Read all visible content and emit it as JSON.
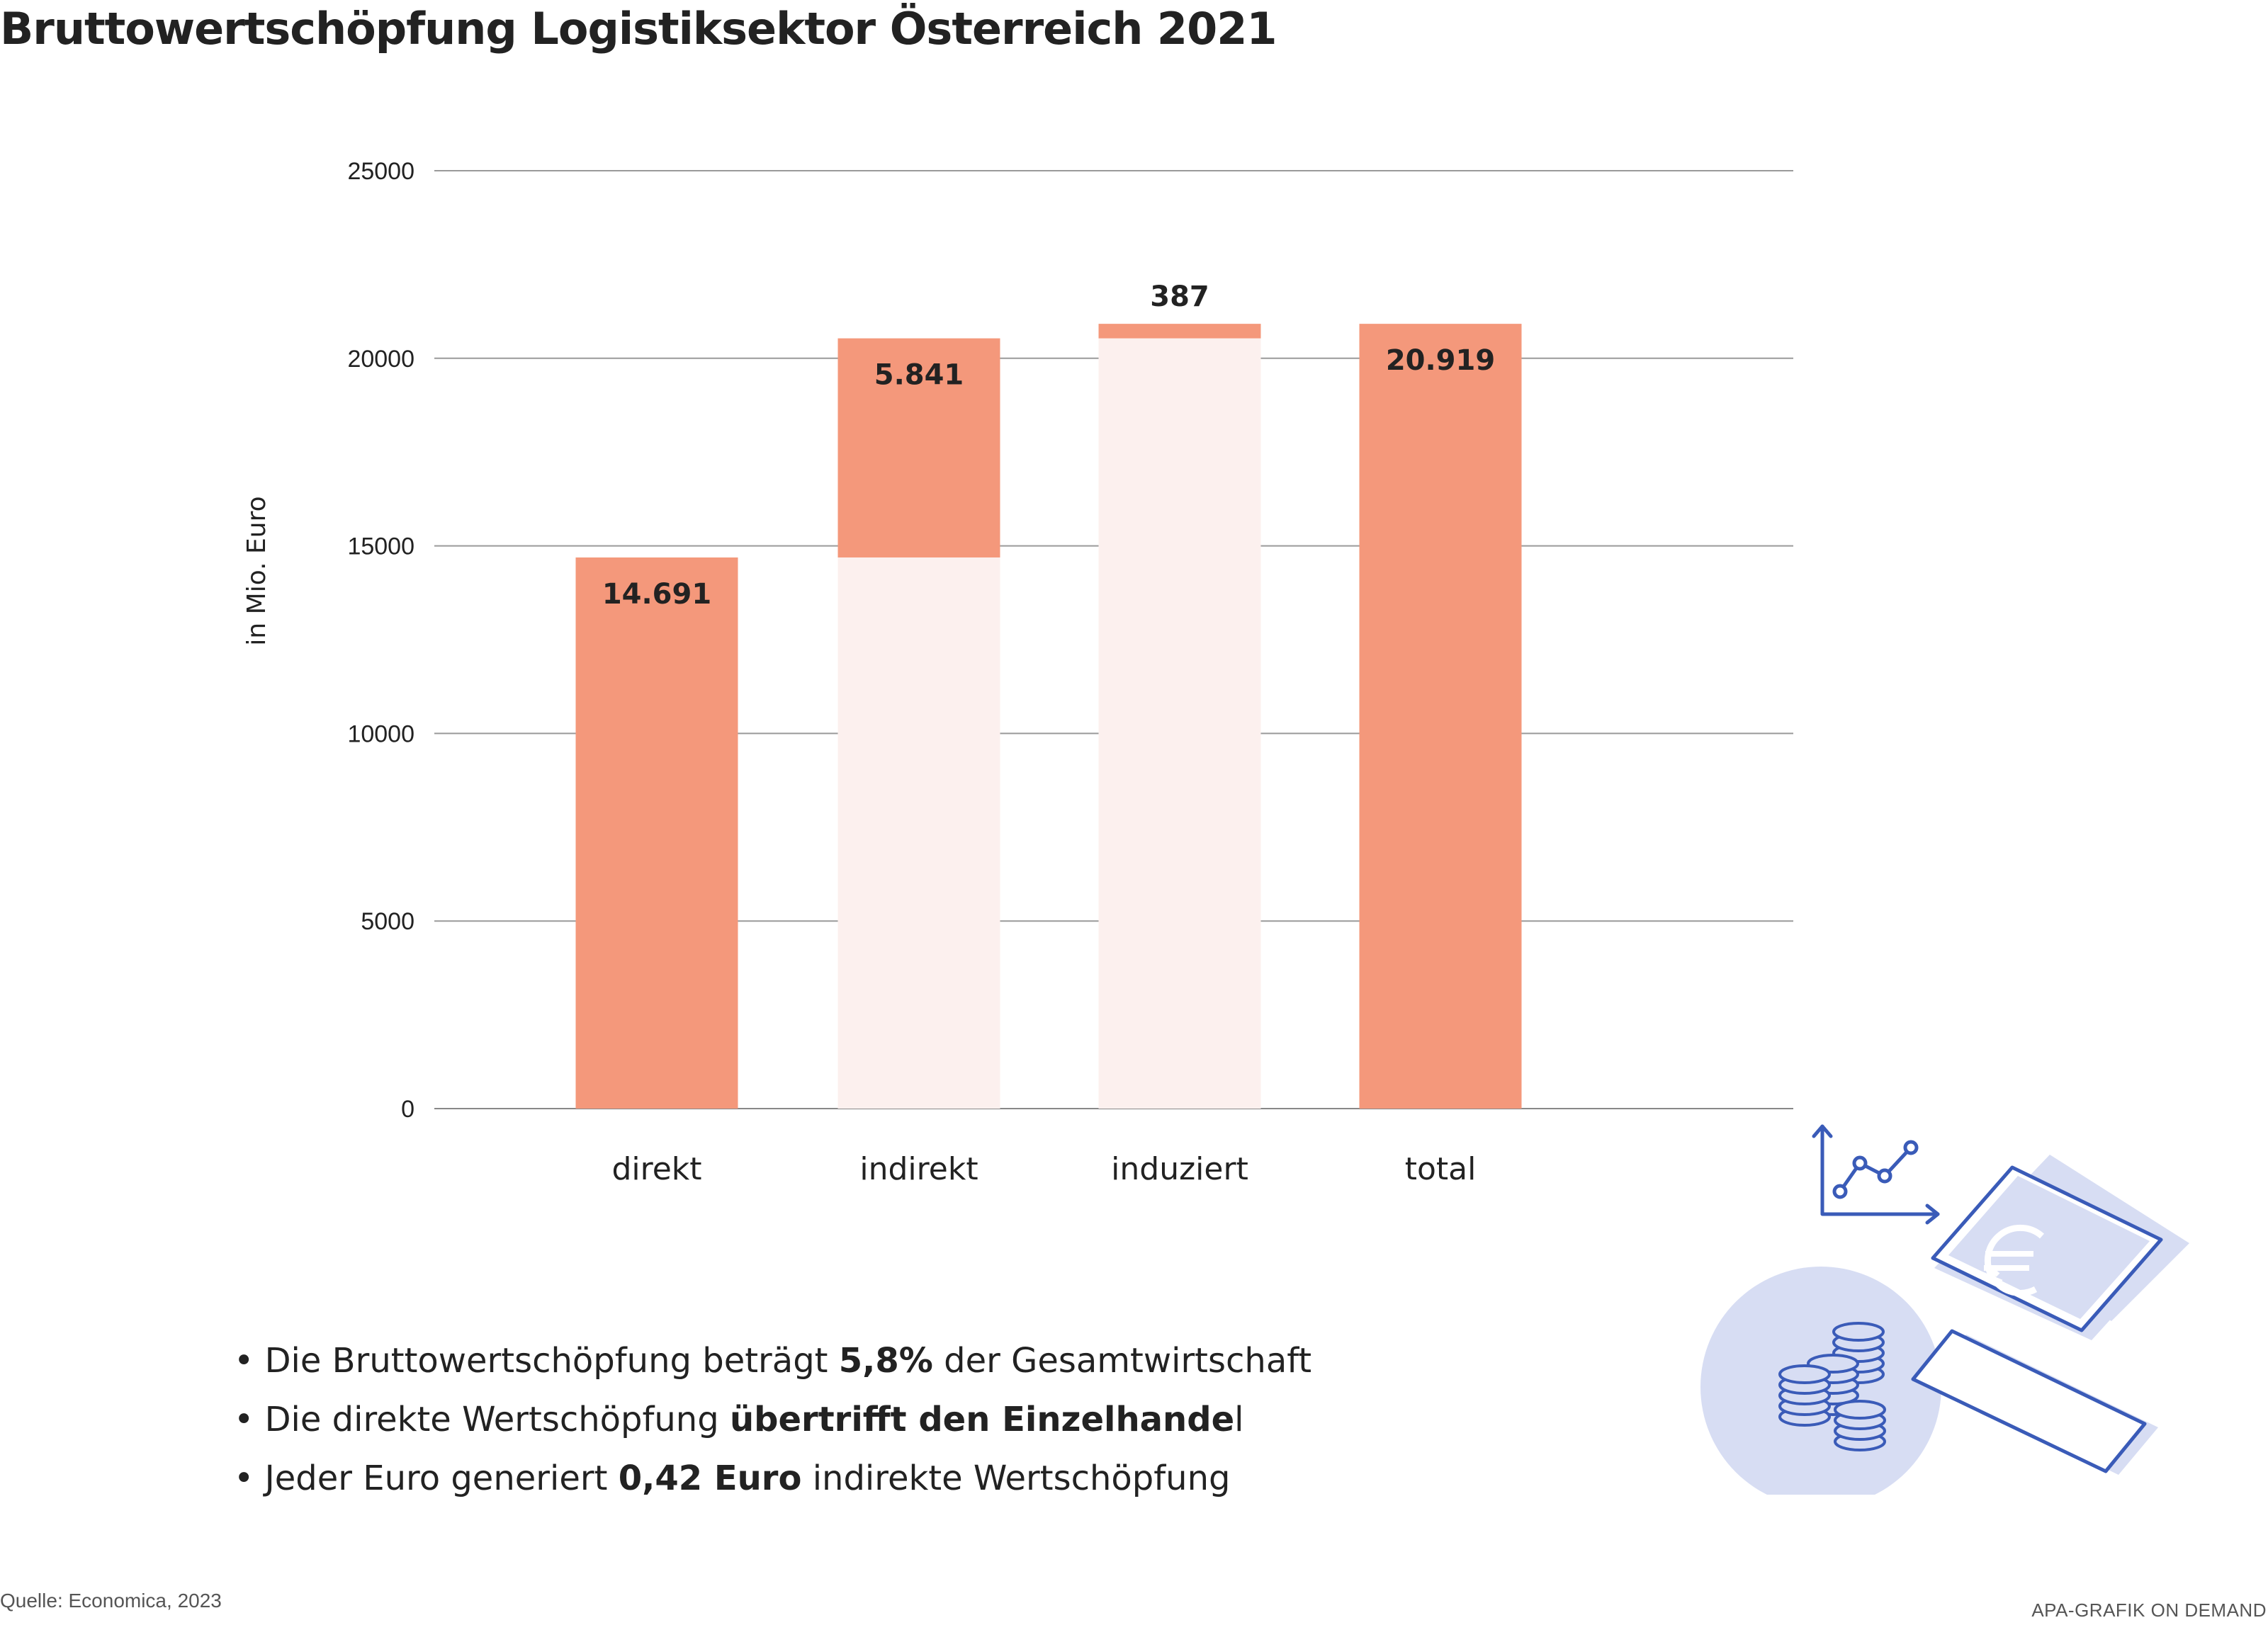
{
  "title": "Bruttowertschöpfung Logistiksektor Österreich 2021",
  "chart_data": {
    "type": "bar",
    "subtype": "waterfall",
    "categories": [
      "direkt",
      "indirekt",
      "induziert",
      "total"
    ],
    "series": [
      {
        "values": [
          14691,
          5841,
          387,
          20919
        ]
      }
    ],
    "bases": [
      0,
      14691,
      20532,
      0
    ],
    "data_labels": [
      "14.691",
      "5.841",
      "387",
      "20.919"
    ],
    "ylabel": "in Mio. Euro",
    "ylim": [
      0,
      25000
    ],
    "yticks": [
      0,
      5000,
      10000,
      15000,
      20000,
      25000
    ],
    "grid": true,
    "colors": {
      "bar": "#f4987b",
      "base": "#fcf0ee",
      "grid": "#9a9a9a",
      "axis": "#888888"
    }
  },
  "bullets": [
    {
      "pre": "Die Bruttowertschöpfung beträgt ",
      "bold": "5,8%",
      "post": " der Gesamtwirtschaft"
    },
    {
      "pre": "Die direkte Wertschöpfung ",
      "bold": "übertrifft den Einzelhande",
      "post": "l"
    },
    {
      "pre": "Jeder Euro generiert ",
      "bold": "0,42 Euro",
      "post": " indirekte Wertschöpfung"
    }
  ],
  "bullet_char": "•",
  "source": "Quelle: Economica, 2023",
  "credit": "APA-GRAFIK ON DEMAND",
  "illustration": {
    "icons": [
      "line-chart-icon",
      "euro-banknote-icon",
      "coin-stack-icon"
    ],
    "colors": {
      "line": "#3a5bb8",
      "fill": "#d7ddf3",
      "paper": "#ffffff"
    }
  }
}
